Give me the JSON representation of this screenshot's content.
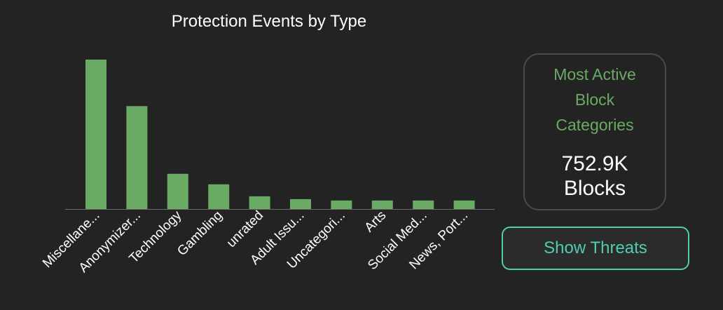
{
  "chart_data": {
    "type": "bar",
    "title": "Protection Events by Type",
    "categories": [
      "Miscellane...",
      "Anonymizer...",
      "Technology",
      "Gambling",
      "unrated",
      "Adult Issu...",
      "Uncategori...",
      "Arts",
      "Social Med...",
      "News, Port..."
    ],
    "values": [
      212,
      146,
      50,
      35,
      18,
      14,
      12,
      12,
      12,
      12
    ],
    "xlabel": "",
    "ylabel": "",
    "grid": false,
    "bar_color": "#6aaa64"
  },
  "summary": {
    "label": "Most Active Block Categories",
    "value": "752.9K",
    "unit": "Blocks"
  },
  "actions": {
    "show_threats_label": "Show Threats"
  },
  "colors": {
    "background": "#232323",
    "accent_green": "#6aaa64",
    "accent_teal": "#4ecdb0"
  }
}
